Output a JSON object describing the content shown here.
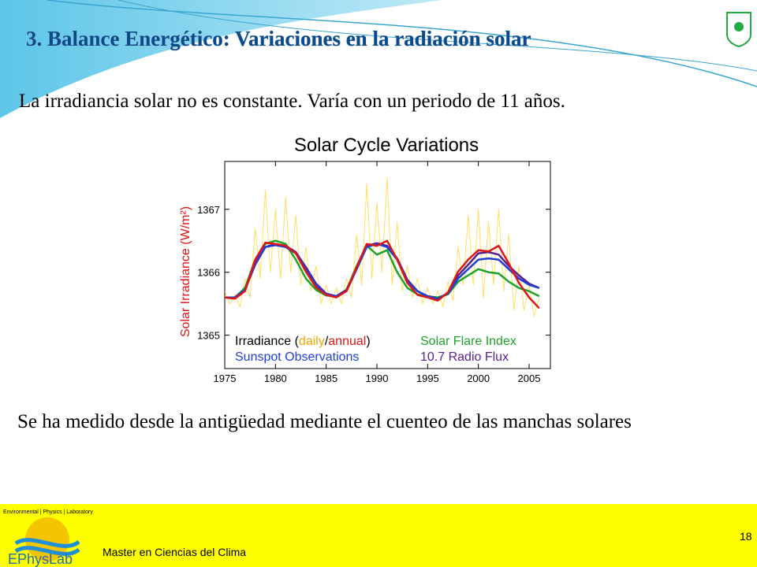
{
  "slide": {
    "title": "3. Balance Energético: Variaciones en la radiación solar",
    "intro": "La irradiancia solar no es constante. Varía con un periodo de 11 años.",
    "body": "Se ha medido desde la antigüedad mediante el cuenteo de las manchas solares",
    "footer": {
      "lab_tagline": "Environmental | Physics | Laboratory",
      "lab_name": "EPhysLab",
      "course": "Master en Ciencias del Clima",
      "page_number": "18"
    }
  },
  "chart_data": {
    "type": "line",
    "title": "Solar Cycle Variations",
    "ylabel": "Solar Irradiance (W/m²)",
    "legend_text": [
      "Irradiance (",
      "/",
      ")"
    ],
    "x": [
      1975,
      1976,
      1977,
      1978,
      1979,
      1980,
      1981,
      1982,
      1983,
      1984,
      1985,
      1986,
      1987,
      1988,
      1989,
      1990,
      1991,
      1992,
      1993,
      1994,
      1995,
      1996,
      1997,
      1998,
      1999,
      2000,
      2001,
      2002,
      2003,
      2004,
      2005,
      2006
    ],
    "xlim": [
      1975,
      2007.1
    ],
    "ylim": [
      1364.47,
      1367.76
    ],
    "xticks": [
      1975,
      1980,
      1985,
      1990,
      1995,
      2000,
      2005
    ],
    "yticks": [
      1365,
      1366,
      1367
    ],
    "series": [
      {
        "name": "daily",
        "color": "#ffd21f",
        "x": [
          1975,
          1975.5,
          1976,
          1976.5,
          1977,
          1977.5,
          1978,
          1978.5,
          1979,
          1979.5,
          1980,
          1980.5,
          1981,
          1981.5,
          1982,
          1982.5,
          1983,
          1983.5,
          1984,
          1984.5,
          1985,
          1985.5,
          1986,
          1986.5,
          1987,
          1987.5,
          1988,
          1988.5,
          1989,
          1989.5,
          1990,
          1990.5,
          1991,
          1991.5,
          1992,
          1992.5,
          1993,
          1993.5,
          1994,
          1994.5,
          1995,
          1995.5,
          1996,
          1996.5,
          1997,
          1997.5,
          1998,
          1998.5,
          1999,
          1999.5,
          2000,
          2000.5,
          2001,
          2001.5,
          2002,
          2002.5,
          2003,
          2003.5,
          2004,
          2004.5,
          2005,
          2005.5,
          2006
        ],
        "values": [
          1365.7,
          1365.5,
          1365.65,
          1365.45,
          1365.9,
          1365.6,
          1366.7,
          1365.9,
          1367.3,
          1366.0,
          1367.0,
          1365.9,
          1367.2,
          1366.0,
          1366.9,
          1365.8,
          1366.4,
          1365.7,
          1366.1,
          1365.5,
          1365.8,
          1365.5,
          1365.75,
          1365.5,
          1365.9,
          1365.6,
          1366.6,
          1365.8,
          1367.4,
          1365.9,
          1367.1,
          1366.0,
          1367.5,
          1365.8,
          1366.8,
          1365.7,
          1366.1,
          1365.6,
          1365.9,
          1365.5,
          1365.75,
          1365.5,
          1365.7,
          1365.45,
          1365.85,
          1365.55,
          1366.4,
          1365.8,
          1366.9,
          1365.8,
          1367.0,
          1365.6,
          1366.8,
          1365.8,
          1367.0,
          1365.7,
          1366.6,
          1365.4,
          1366.1,
          1365.4,
          1365.8,
          1365.3,
          1365.6
        ]
      },
      {
        "name": "Solar Flare Index",
        "color": "#1fa22a",
        "values": [
          1365.6,
          1365.6,
          1365.75,
          1366.2,
          1366.45,
          1366.5,
          1366.45,
          1366.2,
          1365.9,
          1365.72,
          1365.63,
          1365.62,
          1365.72,
          1366.1,
          1366.42,
          1366.28,
          1366.35,
          1366.0,
          1365.75,
          1365.65,
          1365.62,
          1365.6,
          1365.65,
          1365.85,
          1365.95,
          1366.05,
          1366.0,
          1365.98,
          1365.85,
          1365.75,
          1365.7,
          1365.62
        ]
      },
      {
        "name": "10.7 Radio Flux",
        "color": "#5a1f8c",
        "values": [
          1365.6,
          1365.6,
          1365.72,
          1366.12,
          1366.4,
          1366.45,
          1366.42,
          1366.32,
          1366.08,
          1365.82,
          1365.66,
          1365.62,
          1365.72,
          1366.05,
          1366.42,
          1366.46,
          1366.42,
          1366.22,
          1365.88,
          1365.7,
          1365.62,
          1365.58,
          1365.67,
          1365.95,
          1366.12,
          1366.3,
          1366.32,
          1366.28,
          1366.1,
          1365.95,
          1365.82,
          1365.75
        ]
      },
      {
        "name": "Sunspot Observations",
        "color": "#1f3fd6",
        "values": [
          1365.6,
          1365.6,
          1365.72,
          1366.15,
          1366.4,
          1366.43,
          1366.4,
          1366.3,
          1366.05,
          1365.8,
          1365.65,
          1365.62,
          1365.7,
          1366.05,
          1366.4,
          1366.45,
          1366.4,
          1366.2,
          1365.85,
          1365.7,
          1365.62,
          1365.58,
          1365.66,
          1365.9,
          1366.05,
          1366.2,
          1366.22,
          1366.2,
          1366.05,
          1365.9,
          1365.8,
          1365.75
        ]
      },
      {
        "name": "annual",
        "color": "#e01616",
        "values": [
          1365.6,
          1365.58,
          1365.7,
          1366.2,
          1366.47,
          1366.45,
          1366.42,
          1366.3,
          1366.01,
          1365.76,
          1365.64,
          1365.6,
          1365.7,
          1366.08,
          1366.45,
          1366.42,
          1366.5,
          1366.2,
          1365.83,
          1365.64,
          1365.6,
          1365.55,
          1365.68,
          1366.01,
          1366.2,
          1366.35,
          1366.33,
          1366.42,
          1366.14,
          1365.83,
          1365.6,
          1365.43
        ]
      }
    ]
  }
}
